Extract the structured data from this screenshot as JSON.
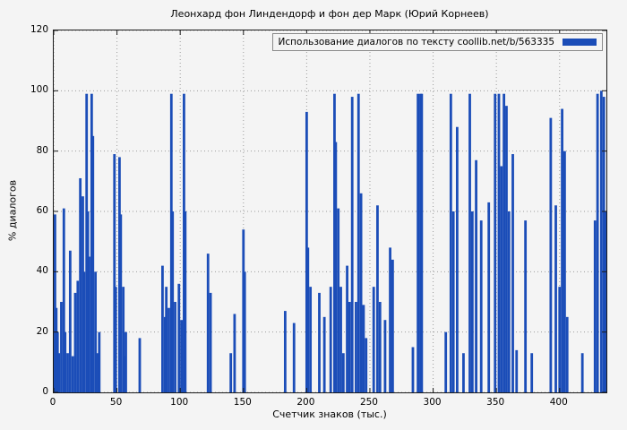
{
  "chart_data": {
    "type": "bar",
    "title": "Леонхард фон Линдендорф и фон дер Марк (Юрий Корнеев)",
    "legend": "Использование диалогов по тексту coollib.net/b/563335",
    "xlabel": "Счетчик знаков (тыс.)",
    "ylabel": "% диалогов",
    "xlim": [
      0,
      437
    ],
    "ylim": [
      0,
      120
    ],
    "x_ticks": [
      0,
      50,
      100,
      150,
      200,
      250,
      300,
      350,
      400
    ],
    "y_ticks": [
      0,
      20,
      40,
      60,
      80,
      100,
      120
    ],
    "grid": true,
    "legend_position": "top-right",
    "bar_color": "#1b4db8",
    "points": [
      [
        1,
        59
      ],
      [
        2,
        28
      ],
      [
        3,
        20
      ],
      [
        4,
        13
      ],
      [
        6,
        30
      ],
      [
        8,
        61
      ],
      [
        9,
        20
      ],
      [
        11,
        13
      ],
      [
        13,
        47
      ],
      [
        15,
        12
      ],
      [
        17,
        33
      ],
      [
        19,
        37
      ],
      [
        21,
        71
      ],
      [
        23,
        65
      ],
      [
        24,
        40
      ],
      [
        26,
        99
      ],
      [
        27,
        60
      ],
      [
        28,
        45
      ],
      [
        30,
        99
      ],
      [
        31,
        85
      ],
      [
        33,
        40
      ],
      [
        35,
        13
      ],
      [
        36,
        20
      ],
      [
        48,
        79
      ],
      [
        49,
        35
      ],
      [
        52,
        78
      ],
      [
        53,
        59
      ],
      [
        55,
        35
      ],
      [
        56,
        12
      ],
      [
        57,
        20
      ],
      [
        68,
        18
      ],
      [
        86,
        42
      ],
      [
        88,
        25
      ],
      [
        89,
        35
      ],
      [
        91,
        28
      ],
      [
        93,
        99
      ],
      [
        94,
        60
      ],
      [
        96,
        30
      ],
      [
        99,
        36
      ],
      [
        101,
        24
      ],
      [
        103,
        99
      ],
      [
        104,
        60
      ],
      [
        122,
        46
      ],
      [
        124,
        33
      ],
      [
        140,
        13
      ],
      [
        143,
        26
      ],
      [
        150,
        54
      ],
      [
        151,
        40
      ],
      [
        183,
        27
      ],
      [
        190,
        23
      ],
      [
        200,
        93
      ],
      [
        201,
        48
      ],
      [
        203,
        35
      ],
      [
        210,
        33
      ],
      [
        214,
        25
      ],
      [
        219,
        35
      ],
      [
        222,
        99
      ],
      [
        223,
        83
      ],
      [
        225,
        61
      ],
      [
        227,
        35
      ],
      [
        229,
        13
      ],
      [
        232,
        42
      ],
      [
        234,
        30
      ],
      [
        236,
        98
      ],
      [
        239,
        30
      ],
      [
        241,
        99
      ],
      [
        243,
        66
      ],
      [
        245,
        29
      ],
      [
        247,
        18
      ],
      [
        253,
        35
      ],
      [
        256,
        62
      ],
      [
        258,
        30
      ],
      [
        262,
        24
      ],
      [
        266,
        48
      ],
      [
        268,
        44
      ],
      [
        284,
        15
      ],
      [
        288,
        99
      ],
      [
        290,
        99
      ],
      [
        291,
        99
      ],
      [
        310,
        20
      ],
      [
        314,
        99
      ],
      [
        316,
        60
      ],
      [
        319,
        88
      ],
      [
        324,
        13
      ],
      [
        329,
        99
      ],
      [
        331,
        60
      ],
      [
        334,
        77
      ],
      [
        338,
        57
      ],
      [
        344,
        63
      ],
      [
        349,
        99
      ],
      [
        352,
        99
      ],
      [
        354,
        75
      ],
      [
        356,
        99
      ],
      [
        358,
        95
      ],
      [
        360,
        60
      ],
      [
        363,
        79
      ],
      [
        366,
        14
      ],
      [
        373,
        57
      ],
      [
        378,
        13
      ],
      [
        393,
        91
      ],
      [
        397,
        62
      ],
      [
        400,
        35
      ],
      [
        402,
        94
      ],
      [
        404,
        80
      ],
      [
        406,
        25
      ],
      [
        418,
        13
      ],
      [
        428,
        57
      ],
      [
        430,
        99
      ],
      [
        433,
        100
      ],
      [
        435,
        98
      ],
      [
        436,
        60
      ]
    ]
  }
}
